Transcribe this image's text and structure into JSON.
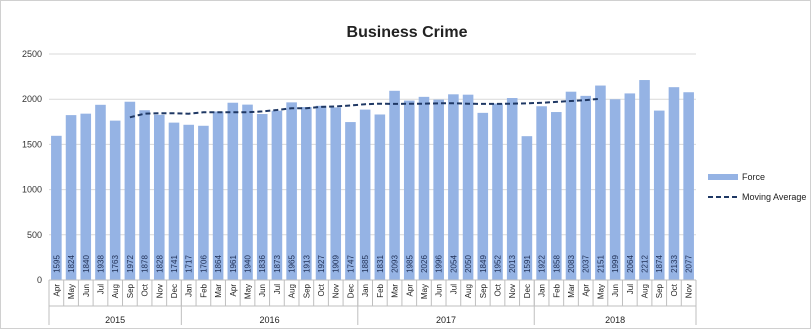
{
  "chart_data": {
    "type": "bar",
    "title": "Business Crime",
    "xlabel": "",
    "ylabel": "",
    "ylim": [
      0,
      2500
    ],
    "yticks": [
      0,
      500,
      1000,
      1500,
      2000,
      2500
    ],
    "grid": true,
    "legend_position": "right",
    "categories": [
      "Apr",
      "May",
      "Jun",
      "Jul",
      "Aug",
      "Sep",
      "Oct",
      "Nov",
      "Dec",
      "Jan",
      "Feb",
      "Mar",
      "Apr",
      "May",
      "Jun",
      "Jul",
      "Aug",
      "Sep",
      "Oct",
      "Nov",
      "Dec",
      "Jan",
      "Feb",
      "Mar",
      "Apr",
      "May",
      "Jun",
      "Jul",
      "Aug",
      "Sep",
      "Oct",
      "Nov",
      "Dec",
      "Jan",
      "Feb",
      "Mar",
      "Apr",
      "May",
      "Jun",
      "Jul",
      "Aug",
      "Sep",
      "Oct",
      "Nov"
    ],
    "year_groups": [
      {
        "label": "2015",
        "count": 9
      },
      {
        "label": "2016",
        "count": 12
      },
      {
        "label": "2017",
        "count": 12
      },
      {
        "label": "2018",
        "count": 11
      }
    ],
    "series": [
      {
        "name": "Force",
        "kind": "bar",
        "color": "#95b3e4",
        "values": [
          1595,
          1824,
          1840,
          1938,
          1763,
          1972,
          1878,
          1828,
          1741,
          1717,
          1706,
          1864,
          1961,
          1940,
          1836,
          1873,
          1965,
          1913,
          1927,
          1909,
          1747,
          1885,
          1831,
          2093,
          1985,
          2026,
          1996,
          2054,
          2050,
          1849,
          1952,
          2013,
          1591,
          1922,
          1858,
          2083,
          2037,
          2151,
          1999,
          2064,
          2212,
          1874,
          2133,
          2077
        ]
      },
      {
        "name": "Moving Average",
        "kind": "line",
        "style": "dashed",
        "color": "#1f3864",
        "values": [
          null,
          null,
          null,
          null,
          null,
          1800,
          1840,
          1845,
          1845,
          1840,
          1855,
          1855,
          1855,
          1855,
          1865,
          1880,
          1900,
          1900,
          1915,
          1920,
          1930,
          1945,
          1950,
          1948,
          1950,
          1950,
          1955,
          1955,
          1950,
          1948,
          1948,
          1950,
          1955,
          1960,
          1970,
          1980,
          1990,
          2005,
          null,
          null,
          null,
          null,
          null,
          null
        ]
      }
    ]
  }
}
